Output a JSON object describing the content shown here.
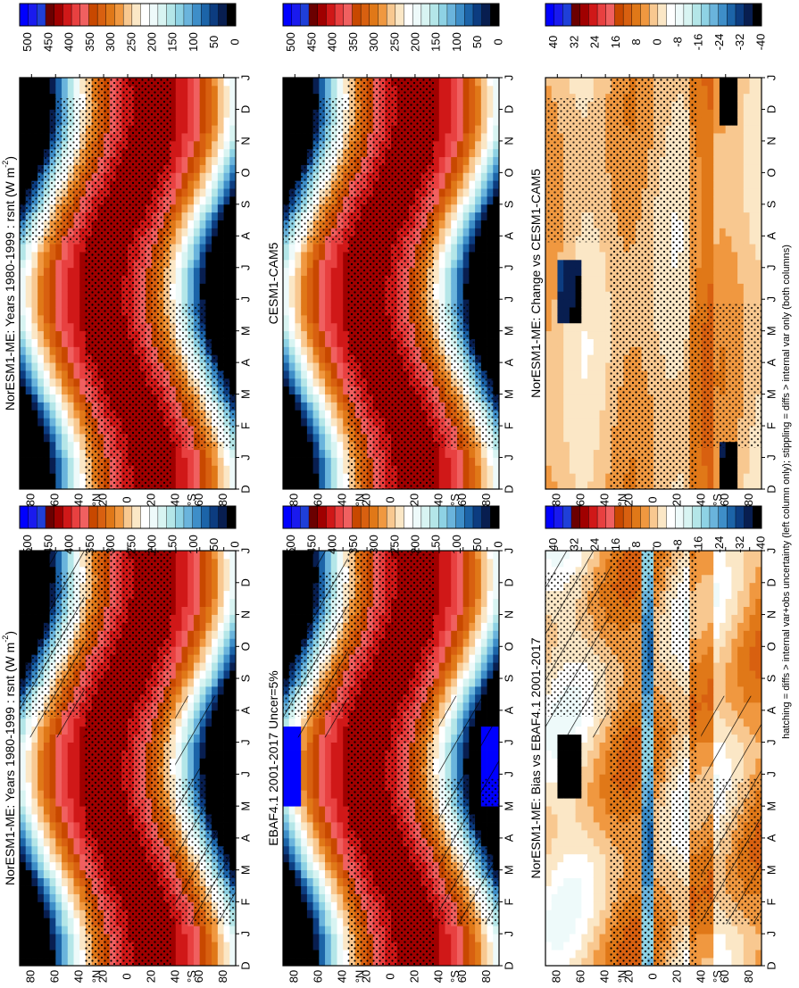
{
  "figure": {
    "footnote": "hatching = diffs > internal var+obs uncertainty (left column only); stippling = diffs > internal var only (both columns)",
    "orientation": "rotated 90 degrees clockwise"
  },
  "colorbars": {
    "absolute": {
      "labels": [
        "500",
        "450",
        "400",
        "350",
        "300",
        "250",
        "200",
        "150",
        "100",
        "50",
        "0"
      ],
      "colors": [
        "#0000ff",
        "#1a1aee",
        "#1f3fd8",
        "#6b0000",
        "#a00000",
        "#d01818",
        "#e84040",
        "#f06060",
        "#c84800",
        "#d86010",
        "#e07818",
        "#f09840",
        "#f8c890",
        "#fbe7c6",
        "#ffffff",
        "#eefafa",
        "#d8f4f2",
        "#b4e6e8",
        "#8ed2e4",
        "#6ab4dc",
        "#3e8ec8",
        "#1c64a8",
        "#0c3c80",
        "#081e50",
        "#000000"
      ]
    },
    "difference": {
      "labels": [
        "40",
        "32",
        "24",
        "16",
        "8",
        "0",
        "-8",
        "-16",
        "-24",
        "-32",
        "-40"
      ],
      "colors": [
        "#0000ff",
        "#1a1aee",
        "#1f3fd8",
        "#6b0000",
        "#a00000",
        "#d01818",
        "#e84040",
        "#f06060",
        "#c84800",
        "#d86010",
        "#e07818",
        "#f09840",
        "#f8c890",
        "#fbe7c6",
        "#ffffff",
        "#eefafa",
        "#d8f4f2",
        "#b4e6e8",
        "#8ed2e4",
        "#6ab4dc",
        "#3e8ec8",
        "#1c64a8",
        "#0c3c80",
        "#081e50",
        "#000000"
      ]
    }
  },
  "chart_data": [
    {
      "id": "top-left",
      "type": "heatmap",
      "title": "NorESM1-ME: Years 1980-1999 : rsnt (W m",
      "title_sup": "-2",
      "title_end": ")",
      "variable": "rsnt",
      "units": "W m-2",
      "x_ticks": [
        "D",
        "J",
        "F",
        "M",
        "A",
        "M",
        "J",
        "J",
        "A",
        "S",
        "O",
        "N",
        "D",
        "J"
      ],
      "y_ticks": [
        "80",
        "60",
        "40",
        "20",
        "0",
        "20",
        "40",
        "60",
        "80"
      ],
      "y_hemi": {
        "north": "°N",
        "south": "°S"
      },
      "colorbar": "absolute",
      "value_range": [
        0,
        500
      ],
      "hatching": true,
      "stippling": true
    },
    {
      "id": "top-right",
      "type": "heatmap",
      "title": "NorESM1-ME: Years 1980-1999 : rsnt (W m",
      "title_sup": "-2",
      "title_end": ")",
      "variable": "rsnt",
      "units": "W m-2",
      "x_ticks": [
        "D",
        "J",
        "F",
        "M",
        "A",
        "M",
        "J",
        "J",
        "A",
        "S",
        "O",
        "N",
        "D",
        "J"
      ],
      "y_ticks": [
        "80",
        "60",
        "40",
        "20",
        "0",
        "20",
        "40",
        "60",
        "80"
      ],
      "y_hemi": {
        "north": "°N",
        "south": "°S"
      },
      "colorbar": "absolute",
      "value_range": [
        0,
        500
      ],
      "hatching": false,
      "stippling": true
    },
    {
      "id": "middle-left",
      "type": "heatmap",
      "title": "EBAF4.1 2001-2017 Uncer=5%",
      "variable": "rsnt",
      "units": "W m-2",
      "x_ticks": [
        "D",
        "J",
        "F",
        "M",
        "A",
        "M",
        "J",
        "J",
        "A",
        "S",
        "O",
        "N",
        "D",
        "J"
      ],
      "y_ticks": [
        "80",
        "60",
        "40",
        "20",
        "0",
        "20",
        "40",
        "60",
        "80"
      ],
      "y_hemi": {
        "north": "°N",
        "south": "°S"
      },
      "colorbar": "absolute",
      "value_range": [
        0,
        500
      ],
      "hatching": true,
      "stippling": true
    },
    {
      "id": "middle-right",
      "type": "heatmap",
      "title": "CESM1-CAM5",
      "variable": "rsnt",
      "units": "W m-2",
      "x_ticks": [
        "D",
        "J",
        "F",
        "M",
        "A",
        "M",
        "J",
        "J",
        "A",
        "S",
        "O",
        "N",
        "D",
        "J"
      ],
      "y_ticks": [
        "80",
        "60",
        "40",
        "20",
        "0",
        "20",
        "40",
        "60",
        "80"
      ],
      "y_hemi": {
        "north": "°N",
        "south": "°S"
      },
      "colorbar": "absolute",
      "value_range": [
        0,
        500
      ],
      "hatching": false,
      "stippling": true
    },
    {
      "id": "bottom-left",
      "type": "heatmap",
      "title": "NorESM1-ME: Bias vs EBAF4.1 2001-2017",
      "variable": "rsnt bias",
      "units": "W m-2",
      "x_ticks": [
        "D",
        "J",
        "F",
        "M",
        "A",
        "M",
        "J",
        "J",
        "A",
        "S",
        "O",
        "N",
        "D",
        "J"
      ],
      "y_ticks": [
        "80",
        "60",
        "40",
        "20",
        "0",
        "20",
        "40",
        "60",
        "80"
      ],
      "y_hemi": {
        "north": "°N",
        "south": "°S"
      },
      "colorbar": "difference",
      "value_range": [
        -40,
        40
      ],
      "hatching": true,
      "stippling": true
    },
    {
      "id": "bottom-right",
      "type": "heatmap",
      "title": "NorESM1-ME: Change vs CESM1-CAM5",
      "variable": "rsnt change",
      "units": "W m-2",
      "x_ticks": [
        "D",
        "J",
        "F",
        "M",
        "A",
        "M",
        "J",
        "J",
        "A",
        "S",
        "O",
        "N",
        "D",
        "J"
      ],
      "y_ticks": [
        "80",
        "60",
        "40",
        "20",
        "0",
        "20",
        "40",
        "60",
        "80"
      ],
      "y_hemi": {
        "north": "°N",
        "south": "°S"
      },
      "colorbar": "difference",
      "value_range": [
        -40,
        40
      ],
      "hatching": false,
      "stippling": true
    }
  ]
}
